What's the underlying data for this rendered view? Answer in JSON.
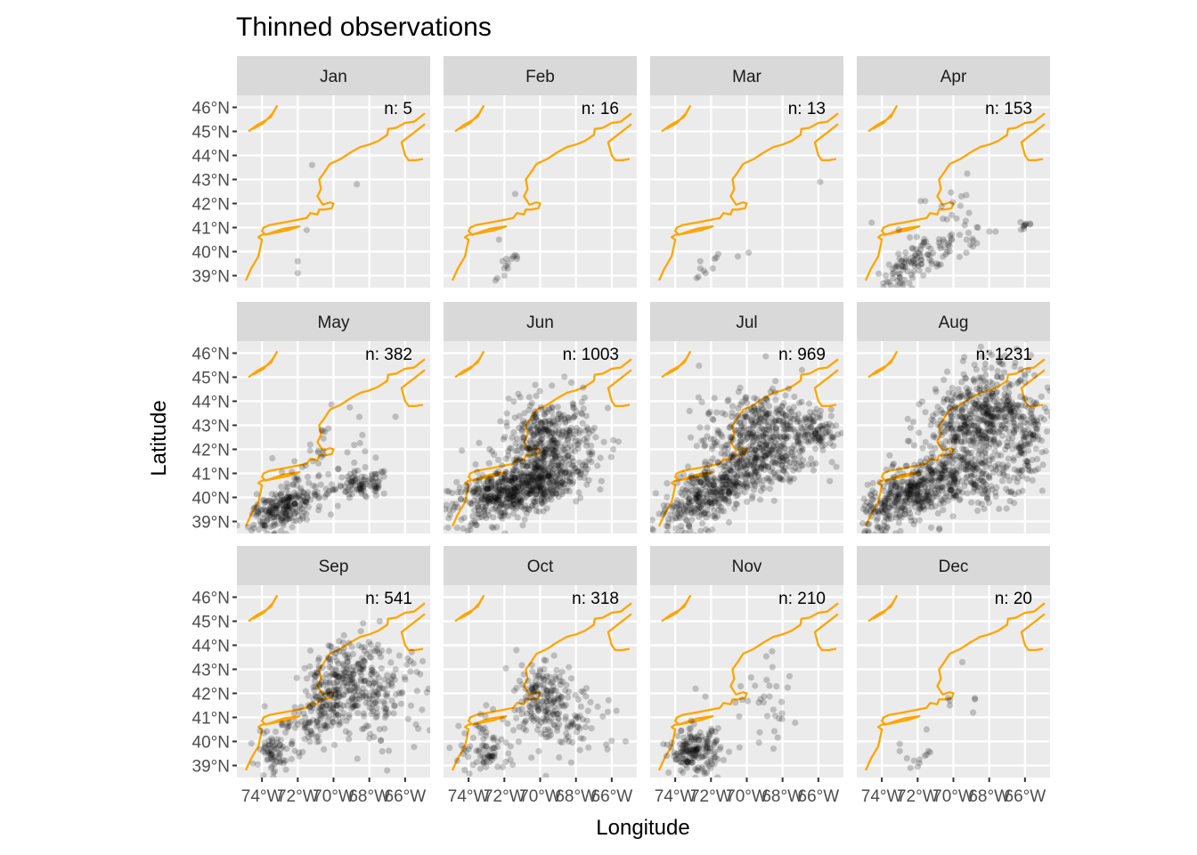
{
  "chart_data": {
    "type": "scatter",
    "title": "Thinned observations",
    "xlabel": "Longitude",
    "ylabel": "Latitude",
    "facet_layout": "4 columns x 3 rows",
    "xlim": [
      -75.4,
      -64.6
    ],
    "ylim": [
      38.5,
      46.5
    ],
    "x_ticks": [
      -74,
      -72,
      -70,
      -68,
      -66
    ],
    "x_tick_labels": [
      "74°W",
      "72°W",
      "70°W",
      "68°W",
      "66°W"
    ],
    "y_ticks": [
      39,
      40,
      41,
      42,
      43,
      44,
      45,
      46
    ],
    "y_tick_labels": [
      "39°N",
      "40°N",
      "41°N",
      "42°N",
      "43°N",
      "44°N",
      "45°N",
      "46°N"
    ],
    "grid": true,
    "colors": {
      "panel_bg": "#ebebeb",
      "grid": "#ffffff",
      "strip_bg": "#d9d9d9",
      "coastline": "#ffa500",
      "points": "#000000"
    },
    "point_alpha": 0.2,
    "coastline": [
      [
        [
          -74.75,
          45.0
        ],
        [
          -74.3,
          45.25
        ],
        [
          -73.8,
          45.45
        ],
        [
          -73.5,
          45.6
        ],
        [
          -73.17,
          46.05
        ],
        [
          -73.4,
          45.75
        ],
        [
          -73.9,
          45.35
        ],
        [
          -74.5,
          45.1
        ]
      ],
      [
        [
          -74.9,
          38.8
        ],
        [
          -74.6,
          39.3
        ],
        [
          -74.2,
          39.8
        ],
        [
          -74.05,
          40.3
        ],
        [
          -74.0,
          40.5
        ],
        [
          -74.2,
          40.6
        ],
        [
          -74.0,
          40.7
        ],
        [
          -73.5,
          40.75
        ],
        [
          -72.5,
          40.9
        ],
        [
          -71.9,
          41.05
        ],
        [
          -72.8,
          40.95
        ],
        [
          -73.8,
          40.7
        ],
        [
          -74.0,
          40.85
        ],
        [
          -73.9,
          41.0
        ],
        [
          -73.6,
          41.1
        ],
        [
          -72.5,
          41.25
        ],
        [
          -71.5,
          41.4
        ],
        [
          -71.3,
          41.6
        ],
        [
          -70.9,
          41.55
        ],
        [
          -70.8,
          41.75
        ],
        [
          -70.5,
          41.75
        ],
        [
          -70.1,
          41.8
        ],
        [
          -70.0,
          42.0
        ],
        [
          -70.2,
          42.05
        ],
        [
          -70.6,
          41.95
        ],
        [
          -70.9,
          42.3
        ],
        [
          -70.7,
          42.6
        ],
        [
          -70.8,
          43.0
        ],
        [
          -70.6,
          43.2
        ],
        [
          -70.2,
          43.65
        ],
        [
          -69.6,
          43.85
        ],
        [
          -69.1,
          44.1
        ],
        [
          -68.5,
          44.35
        ],
        [
          -68.0,
          44.45
        ],
        [
          -67.5,
          44.6
        ],
        [
          -67.0,
          44.85
        ],
        [
          -66.95,
          45.1
        ],
        [
          -66.5,
          45.15
        ],
        [
          -66.0,
          45.35
        ],
        [
          -65.5,
          45.4
        ],
        [
          -64.9,
          45.75
        ]
      ],
      [
        [
          -64.9,
          45.3
        ],
        [
          -65.5,
          44.95
        ],
        [
          -66.2,
          44.55
        ],
        [
          -66.0,
          44.0
        ],
        [
          -65.8,
          43.8
        ],
        [
          -65.4,
          43.8
        ],
        [
          -65.0,
          43.85
        ]
      ]
    ],
    "panels": [
      {
        "month": "Jan",
        "n": 5,
        "points": [
          [
            -71.2,
            43.6
          ],
          [
            -68.7,
            42.8
          ],
          [
            -72.0,
            39.6
          ],
          [
            -72.0,
            39.1
          ],
          [
            -71.5,
            40.9
          ]
        ]
      },
      {
        "month": "Feb",
        "n": 16,
        "points": [
          [
            -71.4,
            42.4
          ],
          [
            -72.3,
            40.5
          ],
          [
            -71.9,
            39.7
          ],
          [
            -71.5,
            39.8
          ],
          [
            -71.8,
            39.5
          ],
          [
            -71.8,
            39.3
          ],
          [
            -72.0,
            39.0
          ],
          [
            -72.5,
            38.8
          ],
          [
            -72.4,
            38.9
          ],
          [
            -71.6,
            39.7
          ],
          [
            -71.3,
            39.7
          ],
          [
            -72.1,
            39.6
          ],
          [
            -71.9,
            39.4
          ],
          [
            -71.4,
            39.85
          ],
          [
            -71.3,
            39.8
          ],
          [
            -72.0,
            39.3
          ]
        ]
      },
      {
        "month": "Mar",
        "n": 13,
        "points": [
          [
            -65.9,
            42.9
          ],
          [
            -72.6,
            39.6
          ],
          [
            -71.6,
            39.9
          ],
          [
            -70.5,
            39.8
          ],
          [
            -69.9,
            39.95
          ],
          [
            -72.6,
            39.3
          ],
          [
            -71.9,
            39.3
          ],
          [
            -72.8,
            38.9
          ],
          [
            -72.3,
            39.1
          ],
          [
            -72.4,
            39.2
          ],
          [
            -71.8,
            39.7
          ],
          [
            -72.7,
            38.95
          ],
          [
            -71.7,
            39.75
          ]
        ]
      },
      {
        "month": "Apr",
        "n": 153,
        "clusters": [
          {
            "center": [
              -72.5,
              39.4
            ],
            "spread": [
              0.8,
              0.35
            ],
            "count": 70,
            "rot": 0.45
          },
          {
            "center": [
              -70.5,
              40.0
            ],
            "spread": [
              1.4,
              0.35
            ],
            "count": 45,
            "rot": 0.35
          },
          {
            "center": [
              -71.0,
              41.3
            ],
            "spread": [
              1.5,
              0.9
            ],
            "count": 28,
            "rot": 0.3
          },
          {
            "center": [
              -66.0,
              41.1
            ],
            "spread": [
              0.25,
              0.15
            ],
            "count": 10,
            "rot": 0
          }
        ]
      },
      {
        "month": "May",
        "n": 382,
        "clusters": [
          {
            "center": [
              -72.6,
              39.6
            ],
            "spread": [
              1.0,
              0.4
            ],
            "count": 200,
            "rot": 0.3
          },
          {
            "center": [
              -68.4,
              40.5
            ],
            "spread": [
              0.8,
              0.3
            ],
            "count": 90,
            "rot": 0.1
          },
          {
            "center": [
              -70.5,
              41.5
            ],
            "spread": [
              1.8,
              0.9
            ],
            "count": 60,
            "rot": 0.3
          },
          {
            "center": [
              -73.8,
              39.4
            ],
            "spread": [
              0.5,
              0.3
            ],
            "count": 32,
            "rot": 0.6
          }
        ]
      },
      {
        "month": "Jun",
        "n": 1003,
        "clusters": [
          {
            "center": [
              -72.0,
              40.1
            ],
            "spread": [
              1.5,
              0.55
            ],
            "count": 420,
            "rot": 0.2
          },
          {
            "center": [
              -69.5,
              42.3
            ],
            "spread": [
              1.3,
              0.9
            ],
            "count": 380,
            "rot": 0.1
          },
          {
            "center": [
              -70.0,
              40.8
            ],
            "spread": [
              1.2,
              0.45
            ],
            "count": 203,
            "rot": 0.0
          }
        ]
      },
      {
        "month": "Jul",
        "n": 969,
        "clusters": [
          {
            "center": [
              -72.0,
              40.2
            ],
            "spread": [
              1.5,
              0.6
            ],
            "count": 380,
            "rot": 0.4
          },
          {
            "center": [
              -69.2,
              42.6
            ],
            "spread": [
              1.6,
              0.9
            ],
            "count": 440,
            "rot": 0.1
          },
          {
            "center": [
              -66.0,
              42.8
            ],
            "spread": [
              0.5,
              0.4
            ],
            "count": 60,
            "rot": 0.0
          },
          {
            "center": [
              -68.6,
              41.4
            ],
            "spread": [
              1.4,
              0.5
            ],
            "count": 89,
            "rot": 0.0
          }
        ]
      },
      {
        "month": "Aug",
        "n": 1231,
        "clusters": [
          {
            "center": [
              -72.3,
              40.1
            ],
            "spread": [
              1.5,
              0.6
            ],
            "count": 430,
            "rot": 0.35
          },
          {
            "center": [
              -68.6,
              43.2
            ],
            "spread": [
              1.6,
              1.0
            ],
            "count": 560,
            "rot": 0.4
          },
          {
            "center": [
              -65.8,
              42.4
            ],
            "spread": [
              0.4,
              0.7
            ],
            "count": 90,
            "rot": 0.0
          },
          {
            "center": [
              -68.3,
              40.8
            ],
            "spread": [
              1.4,
              0.6
            ],
            "count": 151,
            "rot": 0.1
          }
        ]
      },
      {
        "month": "Sep",
        "n": 541,
        "clusters": [
          {
            "center": [
              -69.5,
              42.6
            ],
            "spread": [
              1.2,
              0.8
            ],
            "count": 260,
            "rot": 0.5
          },
          {
            "center": [
              -71.5,
              40.6
            ],
            "spread": [
              1.6,
              0.5
            ],
            "count": 120,
            "rot": 0.3
          },
          {
            "center": [
              -73.5,
              39.3
            ],
            "spread": [
              0.4,
              0.4
            ],
            "count": 50,
            "rot": 0.0
          },
          {
            "center": [
              -67.2,
              41.8
            ],
            "spread": [
              1.2,
              0.9
            ],
            "count": 111,
            "rot": 0.2
          }
        ]
      },
      {
        "month": "Oct",
        "n": 318,
        "clusters": [
          {
            "center": [
              -69.8,
              41.9
            ],
            "spread": [
              0.8,
              0.8
            ],
            "count": 150,
            "rot": 0.3
          },
          {
            "center": [
              -72.9,
              39.7
            ],
            "spread": [
              0.8,
              0.6
            ],
            "count": 80,
            "rot": 0.0
          },
          {
            "center": [
              -68.5,
              40.8
            ],
            "spread": [
              1.5,
              0.8
            ],
            "count": 88,
            "rot": 0.0
          }
        ]
      },
      {
        "month": "Nov",
        "n": 210,
        "clusters": [
          {
            "center": [
              -72.9,
              39.6
            ],
            "spread": [
              0.7,
              0.45
            ],
            "count": 175,
            "rot": 0.0
          },
          {
            "center": [
              -69.0,
              41.5
            ],
            "spread": [
              1.3,
              0.9
            ],
            "count": 35,
            "rot": 0.0
          }
        ]
      },
      {
        "month": "Dec",
        "n": 20,
        "points": [
          [
            -69.5,
            43.3
          ],
          [
            -70.3,
            41.8
          ],
          [
            -68.8,
            41.8
          ],
          [
            -70.2,
            41.5
          ],
          [
            -68.9,
            41.2
          ],
          [
            -71.5,
            40.5
          ],
          [
            -73.0,
            39.9
          ],
          [
            -73.0,
            39.6
          ],
          [
            -72.6,
            39.3
          ],
          [
            -72.2,
            39.2
          ],
          [
            -71.9,
            39.25
          ],
          [
            -71.6,
            39.4
          ],
          [
            -71.4,
            39.6
          ],
          [
            -71.3,
            39.55
          ],
          [
            -72.4,
            38.9
          ],
          [
            -72.0,
            38.95
          ],
          [
            -71.9,
            39.1
          ],
          [
            -71.5,
            39.45
          ],
          [
            -70.2,
            41.7
          ],
          [
            -68.8,
            41.75
          ]
        ]
      }
    ]
  }
}
